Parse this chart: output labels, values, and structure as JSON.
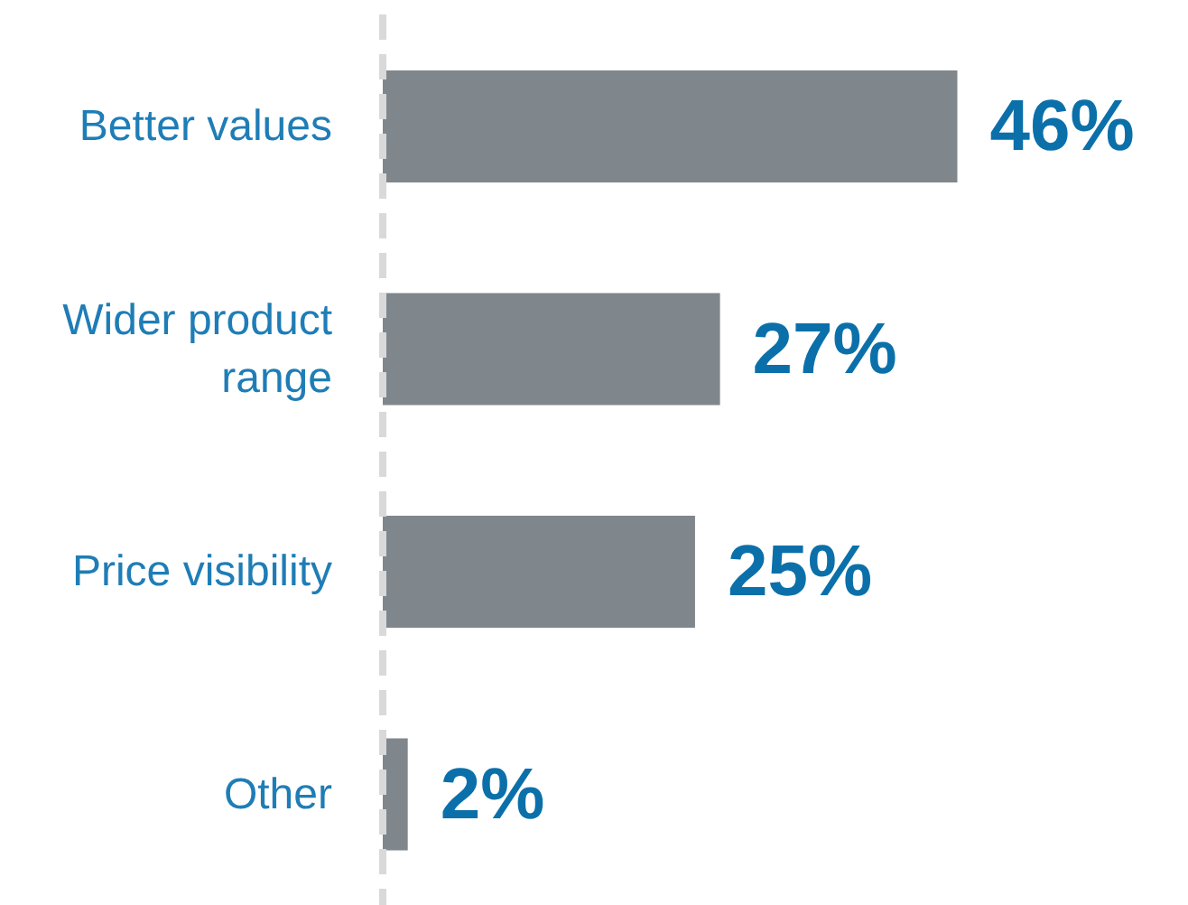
{
  "chart_data": {
    "type": "bar",
    "orientation": "horizontal",
    "categories": [
      "Better values",
      "Wider product range",
      "Price visibility",
      "Other"
    ],
    "values": [
      46,
      27,
      25,
      2
    ],
    "value_labels": [
      "46%",
      "27%",
      "25%",
      "2%"
    ],
    "color": "#7f868c"
  }
}
